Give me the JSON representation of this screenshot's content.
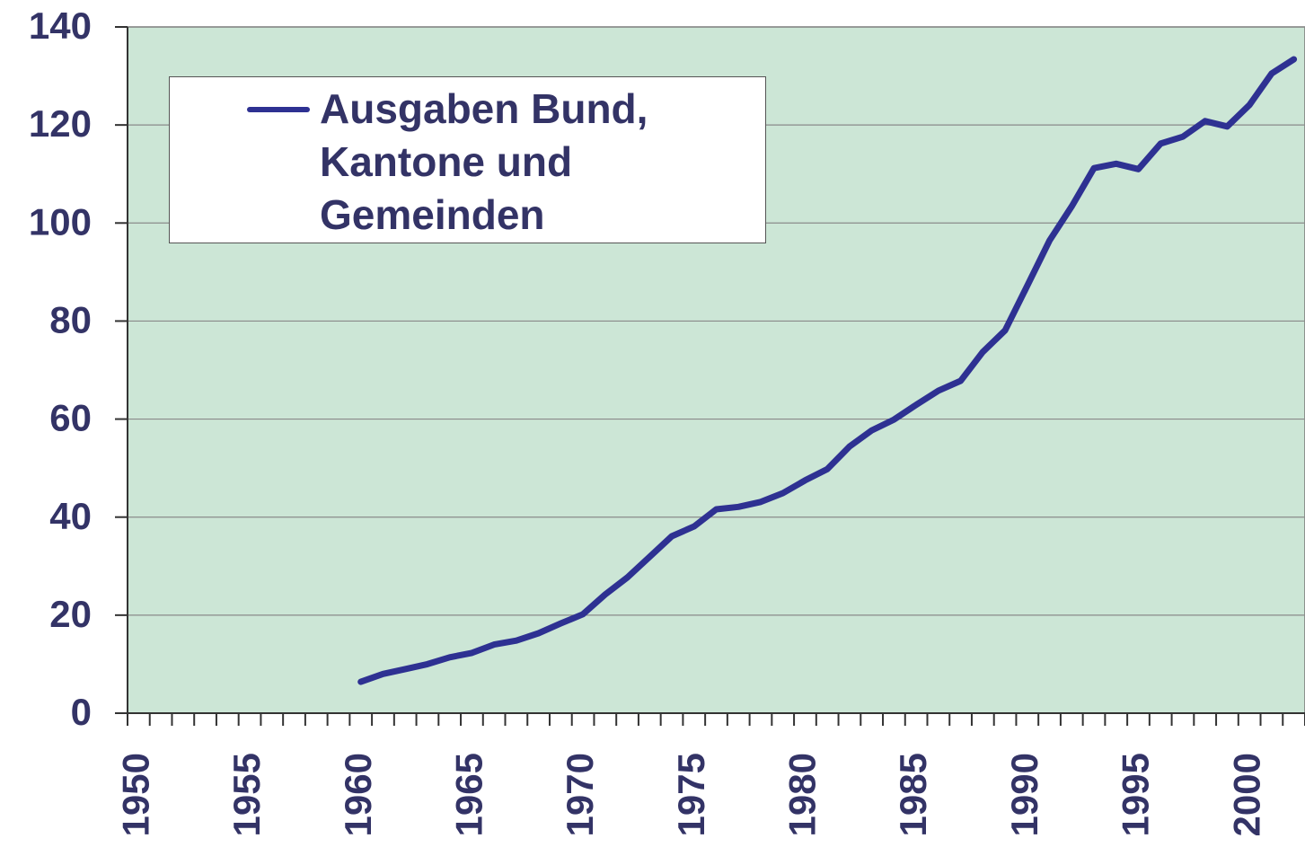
{
  "chart_data": {
    "type": "line",
    "categories": [
      "1950",
      null,
      null,
      null,
      null,
      "1955",
      null,
      null,
      null,
      null,
      "1960",
      null,
      null,
      null,
      null,
      "1965",
      null,
      null,
      null,
      null,
      "1970",
      null,
      null,
      null,
      null,
      "1975",
      null,
      null,
      null,
      null,
      "1980",
      null,
      null,
      null,
      null,
      "1985",
      null,
      null,
      null,
      null,
      "1990",
      null,
      null,
      null,
      null,
      "1995",
      null,
      null,
      null,
      null,
      "2000",
      null,
      null
    ],
    "series": [
      {
        "name": "Ausgaben Bund, Kantone und Gemeinden",
        "color": "#2e3192",
        "values": [
          null,
          null,
          null,
          null,
          null,
          null,
          null,
          null,
          null,
          null,
          6.4,
          8,
          9,
          10,
          11.4,
          12.3,
          14,
          14.8,
          16.3,
          18.3,
          20.2,
          24.2,
          27.7,
          31.9,
          36.1,
          38.1,
          41.6,
          42.1,
          43.1,
          44.9,
          47.5,
          49.8,
          54.4,
          57.7,
          59.9,
          62.9,
          65.8,
          67.8,
          73.7,
          78.1,
          87.2,
          96.4,
          103.4,
          111.2,
          112.1,
          111,
          116.2,
          117.6,
          120.8,
          119.7,
          124.1,
          130.5,
          133.4
        ]
      }
    ],
    "ylim": [
      0,
      140
    ],
    "yticks": [
      0,
      20,
      40,
      60,
      80,
      100,
      120,
      140
    ],
    "grid": true,
    "legend": "upper left"
  }
}
